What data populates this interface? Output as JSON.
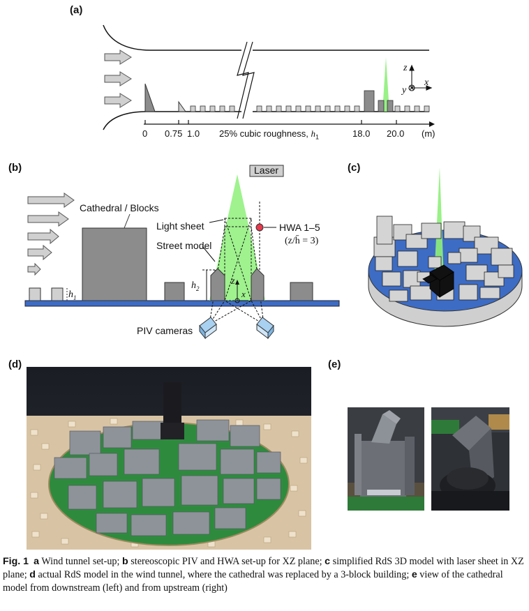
{
  "panels": {
    "a": {
      "label": "(a)",
      "ticks": [
        "0",
        "0.75",
        "1.0",
        "18.0",
        "20.0"
      ],
      "roughness_label": "25% cubic roughness, ",
      "roughness_symbol": "h",
      "roughness_sub": "1",
      "unit": "(m)",
      "axes": {
        "z": "z",
        "x": "x",
        "y": "y"
      }
    },
    "b": {
      "label": "(b)",
      "laser": "Laser",
      "cathedral": "Cathedral / Blocks",
      "light_sheet": "Light sheet",
      "street_model": "Street model",
      "hwa": "HWA 1–5",
      "hwa_height": "(z/h̄ = 3)",
      "piv": "PIV cameras",
      "h1": "h",
      "h1_sub": "1",
      "h2": "h",
      "h2_sub": "2",
      "z": "z",
      "x": "x"
    },
    "c": {
      "label": "(c)"
    },
    "d": {
      "label": "(d)"
    },
    "e": {
      "label": "(e)"
    }
  },
  "caption": {
    "fig": "Fig. 1",
    "a_key": "a",
    "a_text": " Wind tunnel set-up; ",
    "b_key": "b",
    "b_text": " stereoscopic PIV and HWA set-up for XZ plane; ",
    "c_key": "c",
    "c_text": " simplified RdS 3D model with laser sheet in XZ plane; ",
    "d_key": "d",
    "d_text": " actual RdS model in the wind tunnel, where the cathedral was replaced by a 3-block building; ",
    "e_key": "e",
    "e_text": " view of the cathedral model from downstream (left) and from upstream (right)"
  },
  "colors": {
    "green": "#8ef07a",
    "blue_floor": "#3d6cc4",
    "gray_block": "#8c8c8c",
    "light_gray": "#d0d0d0",
    "red_dot": "#e8394d"
  }
}
